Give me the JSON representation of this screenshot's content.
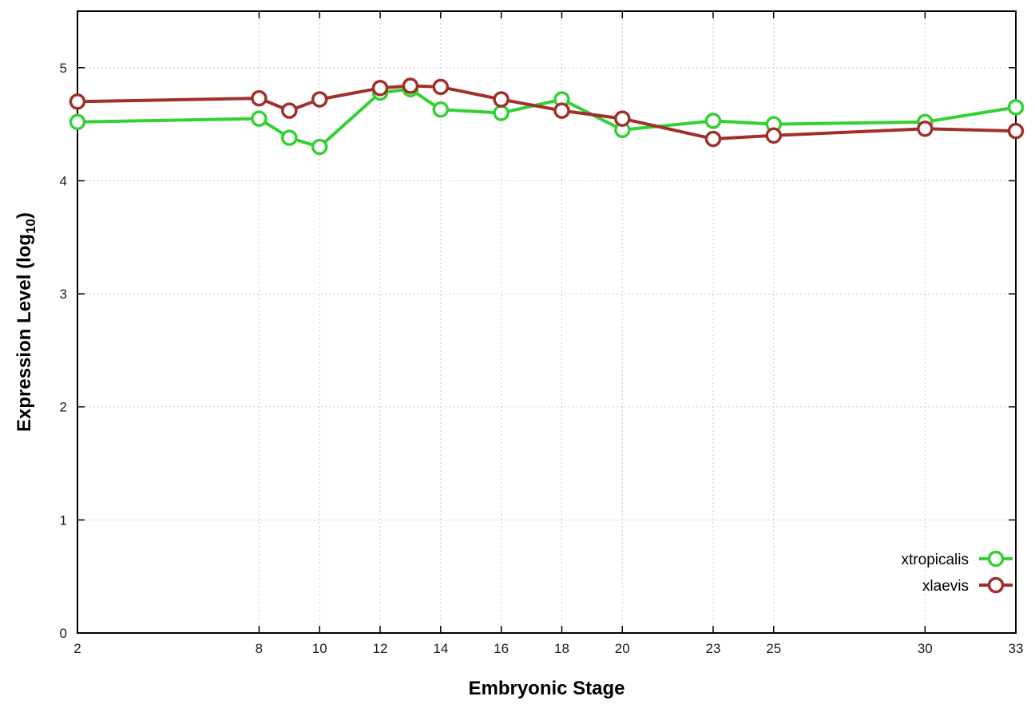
{
  "chart_data": {
    "type": "line",
    "title": "",
    "xlabel": "Embryonic Stage",
    "ylabel": "Expression Level (log10)",
    "ylabel_parts": {
      "pre": "Expression Level (log",
      "sub": "10",
      "post": ")"
    },
    "x": [
      2,
      8,
      9,
      10,
      12,
      13,
      14,
      16,
      18,
      20,
      23,
      25,
      30,
      33
    ],
    "series": [
      {
        "name": "xtropicalis",
        "color": "#33d133",
        "values": [
          4.52,
          4.55,
          4.38,
          4.3,
          4.78,
          4.81,
          4.63,
          4.6,
          4.72,
          4.45,
          4.53,
          4.5,
          4.52,
          4.65
        ]
      },
      {
        "name": "xlaevis",
        "color": "#a0302a",
        "values": [
          4.7,
          4.73,
          4.62,
          4.72,
          4.82,
          4.84,
          4.83,
          4.72,
          4.62,
          4.55,
          4.37,
          4.4,
          4.46,
          4.44
        ]
      }
    ],
    "xticks": [
      2,
      8,
      10,
      12,
      14,
      16,
      18,
      20,
      23,
      25,
      30,
      33
    ],
    "yticks": [
      0,
      1,
      2,
      3,
      4,
      5
    ],
    "xlim": [
      2,
      33
    ],
    "ylim": [
      0,
      5.5
    ],
    "grid": true,
    "legend_position": "inside-right",
    "background": "#ffffff",
    "marker": "open-circle"
  }
}
